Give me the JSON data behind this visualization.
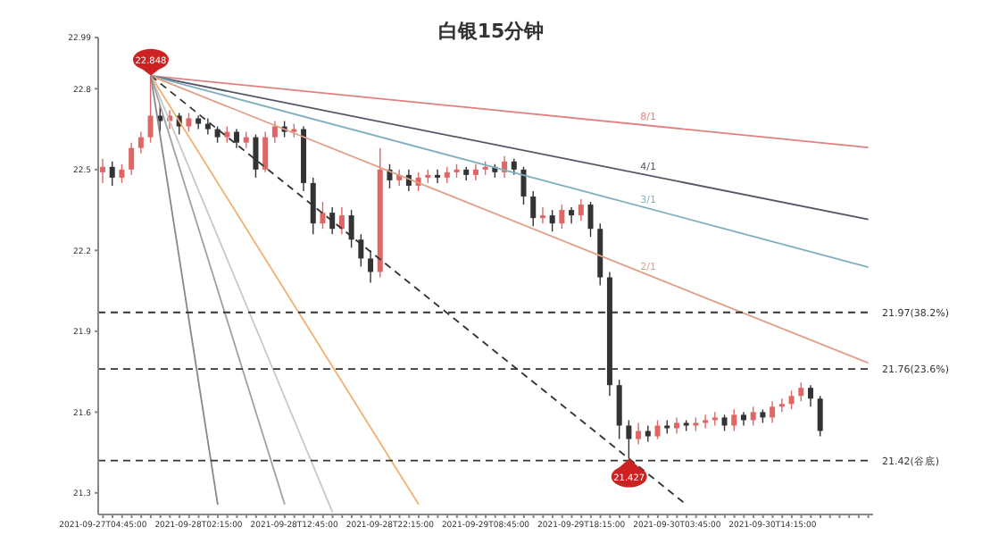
{
  "chart_data": {
    "type": "candlestick",
    "title": "白银15分钟",
    "categories": [
      "2021-09-27T04:45:00",
      null,
      null,
      null,
      null,
      null,
      null,
      null,
      null,
      null,
      "2021-09-28T02:15:00",
      null,
      null,
      null,
      null,
      null,
      null,
      null,
      null,
      null,
      "2021-09-28T12:45:00",
      null,
      null,
      null,
      null,
      null,
      null,
      null,
      null,
      null,
      "2021-09-28T22:15:00",
      null,
      null,
      null,
      null,
      null,
      null,
      null,
      null,
      null,
      "2021-09-29T08:45:00",
      null,
      null,
      null,
      null,
      null,
      null,
      null,
      null,
      null,
      "2021-09-29T18:15:00",
      null,
      null,
      null,
      null,
      null,
      null,
      null,
      null,
      null,
      "2021-09-30T03:45:00",
      null,
      null,
      null,
      null,
      null,
      null,
      null,
      null,
      null,
      "2021-09-30T14:15:00",
      null,
      null,
      null,
      null,
      null,
      null,
      null,
      null,
      null,
      null
    ],
    "ylim": [
      21.22,
      22.99
    ],
    "yticks": [
      21.3,
      21.6,
      21.9,
      22.2,
      22.5,
      22.8,
      22.99
    ],
    "grid": false,
    "legend": false,
    "series": [
      {
        "ohlc": [
          [
            22.49,
            22.54,
            22.45,
            22.51
          ],
          [
            22.51,
            22.53,
            22.44,
            22.47
          ],
          [
            22.47,
            22.52,
            22.45,
            22.5
          ],
          [
            22.5,
            22.6,
            22.48,
            22.58
          ],
          [
            22.58,
            22.64,
            22.56,
            22.62
          ],
          [
            22.62,
            22.848,
            22.6,
            22.7
          ],
          [
            22.7,
            22.74,
            22.64,
            22.68
          ],
          [
            22.68,
            22.72,
            22.65,
            22.7
          ],
          [
            22.7,
            22.71,
            22.63,
            22.66
          ],
          [
            22.66,
            22.71,
            22.64,
            22.69
          ],
          [
            22.69,
            22.7,
            22.65,
            22.67
          ],
          [
            22.67,
            22.69,
            22.63,
            22.65
          ],
          [
            22.65,
            22.66,
            22.6,
            22.62
          ],
          [
            22.62,
            22.66,
            22.6,
            22.64
          ],
          [
            22.64,
            22.65,
            22.58,
            22.6
          ],
          [
            22.6,
            22.64,
            22.58,
            22.62
          ],
          [
            22.62,
            22.63,
            22.47,
            22.5
          ],
          [
            22.5,
            22.64,
            22.49,
            22.62
          ],
          [
            22.62,
            22.68,
            22.6,
            22.66
          ],
          [
            22.66,
            22.68,
            22.62,
            22.64
          ],
          [
            22.64,
            22.67,
            22.62,
            22.65
          ],
          [
            22.65,
            22.66,
            22.42,
            22.45
          ],
          [
            22.45,
            22.47,
            22.26,
            22.3
          ],
          [
            22.3,
            22.38,
            22.28,
            22.34
          ],
          [
            22.34,
            22.36,
            22.26,
            22.28
          ],
          [
            22.28,
            22.36,
            22.26,
            22.33
          ],
          [
            22.33,
            22.35,
            22.21,
            22.24
          ],
          [
            22.24,
            22.26,
            22.14,
            22.17
          ],
          [
            22.17,
            22.2,
            22.08,
            22.12
          ],
          [
            22.12,
            22.58,
            22.1,
            22.5
          ],
          [
            22.5,
            22.52,
            22.43,
            22.46
          ],
          [
            22.46,
            22.5,
            22.44,
            22.48
          ],
          [
            22.48,
            22.5,
            22.42,
            22.44
          ],
          [
            22.44,
            22.49,
            22.42,
            22.47
          ],
          [
            22.47,
            22.5,
            22.45,
            22.48
          ],
          [
            22.48,
            22.5,
            22.45,
            22.47
          ],
          [
            22.47,
            22.51,
            22.45,
            22.49
          ],
          [
            22.49,
            22.52,
            22.47,
            22.5
          ],
          [
            22.5,
            22.51,
            22.46,
            22.48
          ],
          [
            22.48,
            22.52,
            22.46,
            22.5
          ],
          [
            22.5,
            22.53,
            22.48,
            22.51
          ],
          [
            22.51,
            22.52,
            22.47,
            22.49
          ],
          [
            22.49,
            22.55,
            22.47,
            22.53
          ],
          [
            22.53,
            22.54,
            22.48,
            22.5
          ],
          [
            22.5,
            22.51,
            22.37,
            22.4
          ],
          [
            22.4,
            22.42,
            22.29,
            22.32
          ],
          [
            22.32,
            22.36,
            22.3,
            22.33
          ],
          [
            22.33,
            22.35,
            22.27,
            22.3
          ],
          [
            22.3,
            22.37,
            22.28,
            22.35
          ],
          [
            22.35,
            22.36,
            22.3,
            22.33
          ],
          [
            22.33,
            22.39,
            22.31,
            22.37
          ],
          [
            22.37,
            22.38,
            22.25,
            22.28
          ],
          [
            22.28,
            22.3,
            22.07,
            22.1
          ],
          [
            22.1,
            22.12,
            21.66,
            21.7
          ],
          [
            21.7,
            21.72,
            21.5,
            21.55
          ],
          [
            21.55,
            21.57,
            21.427,
            21.5
          ],
          [
            21.5,
            21.56,
            21.48,
            21.53
          ],
          [
            21.53,
            21.55,
            21.49,
            21.51
          ],
          [
            21.51,
            21.57,
            21.5,
            21.55
          ],
          [
            21.55,
            21.57,
            21.52,
            21.54
          ],
          [
            21.54,
            21.58,
            21.52,
            21.56
          ],
          [
            21.56,
            21.57,
            21.53,
            21.55
          ],
          [
            21.55,
            21.58,
            21.53,
            21.56
          ],
          [
            21.56,
            21.59,
            21.54,
            21.57
          ],
          [
            21.57,
            21.6,
            21.55,
            21.58
          ],
          [
            21.58,
            21.59,
            21.53,
            21.55
          ],
          [
            21.55,
            21.61,
            21.53,
            21.59
          ],
          [
            21.59,
            21.6,
            21.55,
            21.57
          ],
          [
            21.57,
            21.62,
            21.55,
            21.6
          ],
          [
            21.6,
            21.61,
            21.56,
            21.58
          ],
          [
            21.58,
            21.64,
            21.56,
            21.62
          ],
          [
            21.62,
            21.65,
            21.6,
            21.63
          ],
          [
            21.63,
            21.68,
            21.61,
            21.66
          ],
          [
            21.66,
            21.71,
            21.64,
            21.69
          ],
          [
            21.69,
            21.7,
            21.62,
            21.65
          ],
          [
            21.65,
            21.66,
            21.51,
            21.53
          ],
          null,
          null,
          null,
          null,
          null
        ],
        "colors": [
          "#e06666",
          "#333333",
          "#e06666",
          "#e06666",
          "#e06666",
          "#e06666",
          "#333333",
          "#e06666",
          "#333333",
          "#e06666",
          "#333333",
          "#333333",
          "#333333",
          "#e06666",
          "#333333",
          "#e06666",
          "#333333",
          "#e06666",
          "#e06666",
          "#333333",
          "#e06666",
          "#333333",
          "#333333",
          "#e06666",
          "#333333",
          "#e06666",
          "#333333",
          "#333333",
          "#333333",
          "#e06666",
          "#333333",
          "#e06666",
          "#333333",
          "#e06666",
          "#e06666",
          "#333333",
          "#e06666",
          "#e06666",
          "#333333",
          "#e06666",
          "#e06666",
          "#333333",
          "#e06666",
          "#333333",
          "#333333",
          "#333333",
          "#e06666",
          "#333333",
          "#e06666",
          "#333333",
          "#e06666",
          "#333333",
          "#333333",
          "#333333",
          "#333333",
          "#333333",
          "#e06666",
          "#333333",
          "#e06666",
          "#333333",
          "#e06666",
          "#333333",
          "#e06666",
          "#e06666",
          "#e06666",
          "#333333",
          "#e06666",
          "#333333",
          "#e06666",
          "#333333",
          "#e06666",
          "#e06666",
          "#e06666",
          "#e06666",
          "#333333",
          "#333333",
          null,
          null,
          null,
          null,
          null
        ]
      },
      {
        "type": "line",
        "name": "8/1",
        "color": "#e08080",
        "values": [
          null,
          null,
          null,
          null,
          null,
          22.848,
          null,
          null,
          null,
          null,
          null,
          null,
          null,
          null,
          null,
          null,
          null,
          null,
          null,
          null,
          null,
          null,
          null,
          null,
          null,
          null,
          null,
          null,
          null,
          null,
          null,
          null,
          null,
          null,
          null,
          null,
          null,
          null,
          null,
          null,
          null,
          null,
          null,
          null,
          null,
          null,
          null,
          null,
          null,
          null,
          null,
          null,
          null,
          null,
          null,
          null,
          null,
          null,
          null,
          null,
          null,
          null,
          null,
          null,
          null,
          null,
          null,
          null,
          null,
          null,
          null,
          null,
          null,
          null,
          null,
          null,
          null,
          null,
          null,
          null,
          22.582
        ]
      },
      {
        "type": "line",
        "name": "4/1",
        "color": "#555566",
        "values": [
          null,
          null,
          null,
          null,
          null,
          22.848,
          null,
          null,
          null,
          null,
          null,
          null,
          null,
          null,
          null,
          null,
          null,
          null,
          null,
          null,
          null,
          null,
          null,
          null,
          null,
          null,
          null,
          null,
          null,
          null,
          null,
          null,
          null,
          null,
          null,
          null,
          null,
          null,
          null,
          null,
          null,
          null,
          null,
          null,
          null,
          null,
          null,
          null,
          null,
          null,
          null,
          null,
          null,
          null,
          null,
          null,
          null,
          null,
          null,
          null,
          null,
          null,
          null,
          null,
          null,
          null,
          null,
          null,
          null,
          null,
          null,
          null,
          null,
          null,
          null,
          null,
          null,
          null,
          null,
          null,
          22.315
        ]
      },
      {
        "type": "line",
        "name": "3/1",
        "color": "#7fb0c0",
        "values": [
          null,
          null,
          null,
          null,
          null,
          22.848,
          null,
          null,
          null,
          null,
          null,
          null,
          null,
          null,
          null,
          null,
          null,
          null,
          null,
          null,
          null,
          null,
          null,
          null,
          null,
          null,
          null,
          null,
          null,
          null,
          null,
          null,
          null,
          null,
          null,
          null,
          null,
          null,
          null,
          null,
          null,
          null,
          null,
          null,
          null,
          null,
          null,
          null,
          null,
          null,
          null,
          null,
          null,
          null,
          null,
          null,
          null,
          null,
          null,
          null,
          null,
          null,
          null,
          null,
          null,
          null,
          null,
          null,
          null,
          null,
          null,
          null,
          null,
          null,
          null,
          null,
          null,
          null,
          null,
          null,
          22.138
        ]
      },
      {
        "type": "line",
        "name": "2/1",
        "color": "#e0a088",
        "values": [
          null,
          null,
          null,
          null,
          null,
          22.848,
          null,
          null,
          null,
          null,
          null,
          null,
          null,
          null,
          null,
          null,
          null,
          null,
          null,
          null,
          null,
          null,
          null,
          null,
          null,
          null,
          null,
          null,
          null,
          null,
          null,
          null,
          null,
          null,
          null,
          null,
          null,
          null,
          null,
          null,
          null,
          null,
          null,
          null,
          null,
          null,
          null,
          null,
          null,
          null,
          null,
          null,
          null,
          null,
          null,
          null,
          null,
          null,
          null,
          null,
          null,
          null,
          null,
          null,
          null,
          null,
          null,
          null,
          null,
          null,
          null,
          null,
          null,
          null,
          null,
          null,
          null,
          null,
          null,
          null,
          21.782
        ]
      },
      {
        "type": "line",
        "color": "#333333",
        "line_style": "dashed",
        "values": [
          null,
          null,
          null,
          null,
          null,
          22.848,
          null,
          null,
          null,
          null,
          null,
          null,
          null,
          null,
          null,
          null,
          null,
          null,
          null,
          null,
          null,
          null,
          null,
          null,
          null,
          null,
          null,
          null,
          null,
          null,
          null,
          null,
          null,
          null,
          null,
          null,
          null,
          null,
          null,
          null,
          null,
          null,
          null,
          null,
          null,
          null,
          null,
          null,
          null,
          null,
          null,
          null,
          null,
          null,
          null,
          null,
          null,
          null,
          null,
          null,
          null,
          21.256,
          null,
          null,
          null,
          null,
          null,
          null,
          null,
          null,
          null,
          null,
          null,
          null,
          null,
          null,
          null,
          null,
          null,
          null,
          null
        ]
      },
      {
        "type": "line",
        "color": "#f0b070",
        "values": [
          null,
          null,
          null,
          null,
          null,
          22.848,
          null,
          null,
          null,
          null,
          null,
          null,
          null,
          null,
          null,
          null,
          null,
          null,
          null,
          null,
          null,
          null,
          null,
          null,
          null,
          null,
          null,
          null,
          null,
          null,
          null,
          null,
          null,
          21.257,
          null,
          null,
          null,
          null,
          null,
          null,
          null,
          null,
          null,
          null,
          null,
          null,
          null,
          null,
          null,
          null,
          null,
          null,
          null,
          null,
          null,
          null,
          null,
          null,
          null,
          null,
          null,
          null,
          null,
          null,
          null,
          null,
          null,
          null,
          null,
          null,
          null,
          null,
          null,
          null,
          null,
          null,
          null,
          null,
          null,
          null,
          null
        ]
      },
      {
        "type": "line",
        "color": "#c8c8c8",
        "values": [
          null,
          null,
          null,
          null,
          null,
          22.848,
          null,
          null,
          null,
          null,
          null,
          null,
          null,
          null,
          null,
          null,
          null,
          null,
          null,
          null,
          null,
          null,
          null,
          null,
          21.228,
          null,
          null,
          null,
          null,
          null,
          null,
          null,
          null,
          null,
          null,
          null,
          null,
          null,
          null,
          null,
          null,
          null,
          null,
          null,
          null,
          null,
          null,
          null,
          null,
          null,
          null,
          null,
          null,
          null,
          null,
          null,
          null,
          null,
          null,
          null,
          null,
          null,
          null,
          null,
          null,
          null,
          null,
          null,
          null,
          null,
          null,
          null,
          null,
          null,
          null,
          null,
          null,
          null,
          null,
          null,
          null
        ]
      },
      {
        "type": "line",
        "color": "#a0a0a0",
        "values": [
          null,
          null,
          null,
          null,
          null,
          22.848,
          null,
          null,
          null,
          null,
          null,
          null,
          null,
          null,
          null,
          null,
          null,
          null,
          null,
          21.257,
          null,
          null,
          null,
          null,
          null,
          null,
          null,
          null,
          null,
          null,
          null,
          null,
          null,
          null,
          null,
          null,
          null,
          null,
          null,
          null,
          null,
          null,
          null,
          null,
          null,
          null,
          null,
          null,
          null,
          null,
          null,
          null,
          null,
          null,
          null,
          null,
          null,
          null,
          null,
          null,
          null,
          null,
          null,
          null,
          null,
          null,
          null,
          null,
          null,
          null,
          null,
          null,
          null,
          null,
          null,
          null,
          null,
          null,
          null,
          null,
          null
        ]
      },
      {
        "type": "line",
        "color": "#888888",
        "values": [
          null,
          null,
          null,
          null,
          null,
          22.848,
          null,
          null,
          null,
          null,
          null,
          null,
          21.256,
          null,
          null,
          null,
          null,
          null,
          null,
          null,
          null,
          null,
          null,
          null,
          null,
          null,
          null,
          null,
          null,
          null,
          null,
          null,
          null,
          null,
          null,
          null,
          null,
          null,
          null,
          null,
          null,
          null,
          null,
          null,
          null,
          null,
          null,
          null,
          null,
          null,
          null,
          null,
          null,
          null,
          null,
          null,
          null,
          null,
          null,
          null,
          null,
          null,
          null,
          null,
          null,
          null,
          null,
          null,
          null,
          null,
          null,
          null,
          null,
          null,
          null,
          null,
          null,
          null,
          null,
          null,
          null
        ]
      }
    ],
    "ref_lines": [
      {
        "axis": "y",
        "value": 21.97,
        "label": "21.97(38.2%)",
        "color": "#333333",
        "line_style": "dashed"
      },
      {
        "axis": "y",
        "value": 21.76,
        "label": "21.76(23.6%)",
        "color": "#333333",
        "line_style": "dashed"
      },
      {
        "axis": "y",
        "value": 21.42,
        "label": "21.42(谷底)",
        "color": "#333333",
        "line_style": "dashed"
      }
    ],
    "annotations": [
      {
        "text": "22.848",
        "y": 22.848
      },
      {
        "text": "21.427",
        "y": 21.427
      }
    ]
  }
}
